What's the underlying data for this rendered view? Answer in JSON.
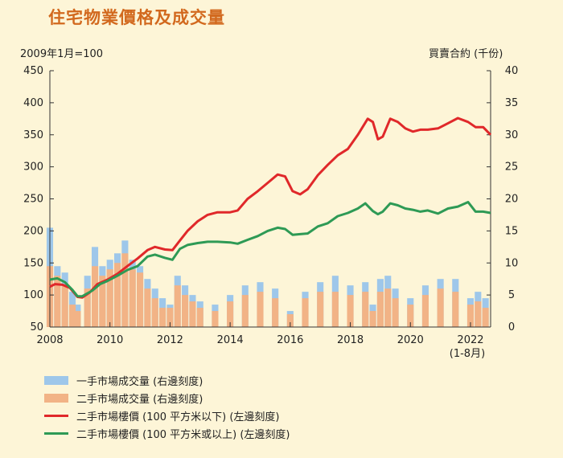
{
  "colors": {
    "first_hand": "#9ec7ea",
    "second_hand": "#f2b386",
    "price_small": "#e0282a",
    "price_large": "#2e9a55",
    "title": "#d2691e",
    "background": "#fdf5d7"
  },
  "chart_data": {
    "type": "bar+line",
    "title": "住宅物業價格及成交量",
    "left_axis_label": "2009年1月=100",
    "right_axis_label": "買賣合約 (千份)",
    "left_ylim": [
      50,
      450
    ],
    "left_ticks": [
      "450",
      "400",
      "350",
      "300",
      "250",
      "200",
      "150",
      "100",
      "50"
    ],
    "right_ylim": [
      0,
      40
    ],
    "right_ticks": [
      "40",
      "35",
      "30",
      "25",
      "20",
      "15",
      "10",
      "5",
      "0"
    ],
    "x_range": [
      2008.0,
      2022.67
    ],
    "x_ticks": [
      "2008",
      "2010",
      "2012",
      "2014",
      "2016",
      "2018",
      "2020",
      "2022"
    ],
    "x_tick_note": "(1-8月)",
    "series": [
      {
        "name": "一手市場成交量 (右邊刻度)",
        "axis": "right",
        "type": "bar",
        "points": [
          [
            2008.0,
            15.5
          ],
          [
            2008.25,
            9.5
          ],
          [
            2008.5,
            8.5
          ],
          [
            2008.75,
            5.5
          ],
          [
            2008.92,
            3.5
          ],
          [
            2009.25,
            8.0
          ],
          [
            2009.5,
            12.5
          ],
          [
            2009.75,
            9.5
          ],
          [
            2010.0,
            10.5
          ],
          [
            2010.25,
            11.5
          ],
          [
            2010.5,
            13.5
          ],
          [
            2010.75,
            10.5
          ],
          [
            2011.0,
            9.5
          ],
          [
            2011.25,
            7.5
          ],
          [
            2011.5,
            6.0
          ],
          [
            2011.75,
            4.5
          ],
          [
            2012.0,
            3.5
          ],
          [
            2012.25,
            8.0
          ],
          [
            2012.5,
            6.5
          ],
          [
            2012.75,
            5.0
          ],
          [
            2013.0,
            4.0
          ],
          [
            2013.5,
            3.5
          ],
          [
            2014.0,
            5.0
          ],
          [
            2014.5,
            6.5
          ],
          [
            2015.0,
            7.0
          ],
          [
            2015.5,
            6.0
          ],
          [
            2016.0,
            2.5
          ],
          [
            2016.5,
            5.5
          ],
          [
            2017.0,
            7.0
          ],
          [
            2017.5,
            8.0
          ],
          [
            2018.0,
            6.5
          ],
          [
            2018.5,
            7.0
          ],
          [
            2018.75,
            3.5
          ],
          [
            2019.0,
            7.5
          ],
          [
            2019.25,
            8.0
          ],
          [
            2019.5,
            6.0
          ],
          [
            2020.0,
            4.5
          ],
          [
            2020.5,
            6.5
          ],
          [
            2021.0,
            7.5
          ],
          [
            2021.5,
            7.5
          ],
          [
            2022.0,
            4.5
          ],
          [
            2022.25,
            5.5
          ],
          [
            2022.5,
            4.5
          ]
        ]
      },
      {
        "name": "二手市場成交量 (右邊刻度)",
        "axis": "right",
        "type": "bar",
        "points": [
          [
            2008.0,
            9.5
          ],
          [
            2008.25,
            8.0
          ],
          [
            2008.5,
            6.5
          ],
          [
            2008.75,
            3.5
          ],
          [
            2008.92,
            2.5
          ],
          [
            2009.25,
            6.0
          ],
          [
            2009.5,
            9.5
          ],
          [
            2009.75,
            8.0
          ],
          [
            2010.0,
            9.0
          ],
          [
            2010.25,
            10.0
          ],
          [
            2010.5,
            11.5
          ],
          [
            2010.75,
            9.0
          ],
          [
            2011.0,
            8.5
          ],
          [
            2011.25,
            6.0
          ],
          [
            2011.5,
            4.5
          ],
          [
            2011.75,
            3.0
          ],
          [
            2012.0,
            3.0
          ],
          [
            2012.25,
            6.5
          ],
          [
            2012.5,
            5.0
          ],
          [
            2012.75,
            4.0
          ],
          [
            2013.0,
            3.0
          ],
          [
            2013.5,
            2.5
          ],
          [
            2014.0,
            4.0
          ],
          [
            2014.5,
            5.0
          ],
          [
            2015.0,
            5.5
          ],
          [
            2015.5,
            4.5
          ],
          [
            2016.0,
            2.0
          ],
          [
            2016.5,
            4.5
          ],
          [
            2017.0,
            5.5
          ],
          [
            2017.5,
            5.5
          ],
          [
            2018.0,
            5.0
          ],
          [
            2018.5,
            5.5
          ],
          [
            2018.75,
            2.5
          ],
          [
            2019.0,
            5.5
          ],
          [
            2019.25,
            6.0
          ],
          [
            2019.5,
            4.5
          ],
          [
            2020.0,
            3.5
          ],
          [
            2020.5,
            5.0
          ],
          [
            2021.0,
            6.0
          ],
          [
            2021.5,
            5.5
          ],
          [
            2022.0,
            3.5
          ],
          [
            2022.25,
            4.0
          ],
          [
            2022.5,
            3.0
          ]
        ]
      },
      {
        "name": "二手市場樓價 (100 平方米以下) (左邊刻度)",
        "axis": "left",
        "type": "line",
        "points": [
          [
            2008.0,
            113
          ],
          [
            2008.17,
            117
          ],
          [
            2008.42,
            116
          ],
          [
            2008.67,
            111
          ],
          [
            2008.92,
            97
          ],
          [
            2009.08,
            96
          ],
          [
            2009.33,
            104
          ],
          [
            2009.58,
            117
          ],
          [
            2009.92,
            124
          ],
          [
            2010.25,
            133
          ],
          [
            2010.58,
            145
          ],
          [
            2010.92,
            157
          ],
          [
            2011.25,
            170
          ],
          [
            2011.5,
            175
          ],
          [
            2011.83,
            171
          ],
          [
            2012.08,
            170
          ],
          [
            2012.33,
            185
          ],
          [
            2012.58,
            200
          ],
          [
            2012.92,
            215
          ],
          [
            2013.25,
            225
          ],
          [
            2013.58,
            229
          ],
          [
            2014.0,
            229
          ],
          [
            2014.25,
            232
          ],
          [
            2014.58,
            250
          ],
          [
            2014.92,
            262
          ],
          [
            2015.25,
            275
          ],
          [
            2015.58,
            288
          ],
          [
            2015.83,
            285
          ],
          [
            2016.08,
            262
          ],
          [
            2016.33,
            257
          ],
          [
            2016.58,
            265
          ],
          [
            2016.92,
            287
          ],
          [
            2017.25,
            303
          ],
          [
            2017.58,
            318
          ],
          [
            2017.92,
            328
          ],
          [
            2018.25,
            350
          ],
          [
            2018.58,
            375
          ],
          [
            2018.75,
            370
          ],
          [
            2018.92,
            343
          ],
          [
            2019.08,
            347
          ],
          [
            2019.33,
            375
          ],
          [
            2019.58,
            370
          ],
          [
            2019.83,
            360
          ],
          [
            2020.08,
            355
          ],
          [
            2020.33,
            358
          ],
          [
            2020.58,
            358
          ],
          [
            2020.92,
            360
          ],
          [
            2021.25,
            368
          ],
          [
            2021.58,
            376
          ],
          [
            2021.92,
            370
          ],
          [
            2022.17,
            362
          ],
          [
            2022.42,
            362
          ],
          [
            2022.67,
            350
          ]
        ]
      },
      {
        "name": "二手市場樓價 (100 平方米或以上) (左邊刻度)",
        "axis": "left",
        "type": "line",
        "points": [
          [
            2008.0,
            124
          ],
          [
            2008.25,
            126
          ],
          [
            2008.5,
            120
          ],
          [
            2008.75,
            108
          ],
          [
            2008.92,
            98
          ],
          [
            2009.08,
            98
          ],
          [
            2009.42,
            107
          ],
          [
            2009.67,
            117
          ],
          [
            2009.92,
            122
          ],
          [
            2010.25,
            130
          ],
          [
            2010.58,
            139
          ],
          [
            2010.92,
            145
          ],
          [
            2011.25,
            160
          ],
          [
            2011.5,
            163
          ],
          [
            2011.83,
            158
          ],
          [
            2012.08,
            155
          ],
          [
            2012.33,
            172
          ],
          [
            2012.58,
            178
          ],
          [
            2012.92,
            181
          ],
          [
            2013.25,
            183
          ],
          [
            2013.58,
            183
          ],
          [
            2014.0,
            182
          ],
          [
            2014.25,
            180
          ],
          [
            2014.58,
            186
          ],
          [
            2014.92,
            192
          ],
          [
            2015.25,
            200
          ],
          [
            2015.58,
            205
          ],
          [
            2015.83,
            203
          ],
          [
            2016.08,
            194
          ],
          [
            2016.33,
            195
          ],
          [
            2016.58,
            196
          ],
          [
            2016.92,
            207
          ],
          [
            2017.25,
            212
          ],
          [
            2017.58,
            223
          ],
          [
            2017.92,
            228
          ],
          [
            2018.25,
            235
          ],
          [
            2018.5,
            243
          ],
          [
            2018.75,
            231
          ],
          [
            2018.92,
            226
          ],
          [
            2019.08,
            230
          ],
          [
            2019.33,
            243
          ],
          [
            2019.58,
            240
          ],
          [
            2019.83,
            235
          ],
          [
            2020.08,
            233
          ],
          [
            2020.33,
            230
          ],
          [
            2020.58,
            232
          ],
          [
            2020.92,
            227
          ],
          [
            2021.25,
            235
          ],
          [
            2021.58,
            238
          ],
          [
            2021.92,
            245
          ],
          [
            2022.17,
            230
          ],
          [
            2022.42,
            230
          ],
          [
            2022.67,
            228
          ]
        ]
      }
    ]
  }
}
